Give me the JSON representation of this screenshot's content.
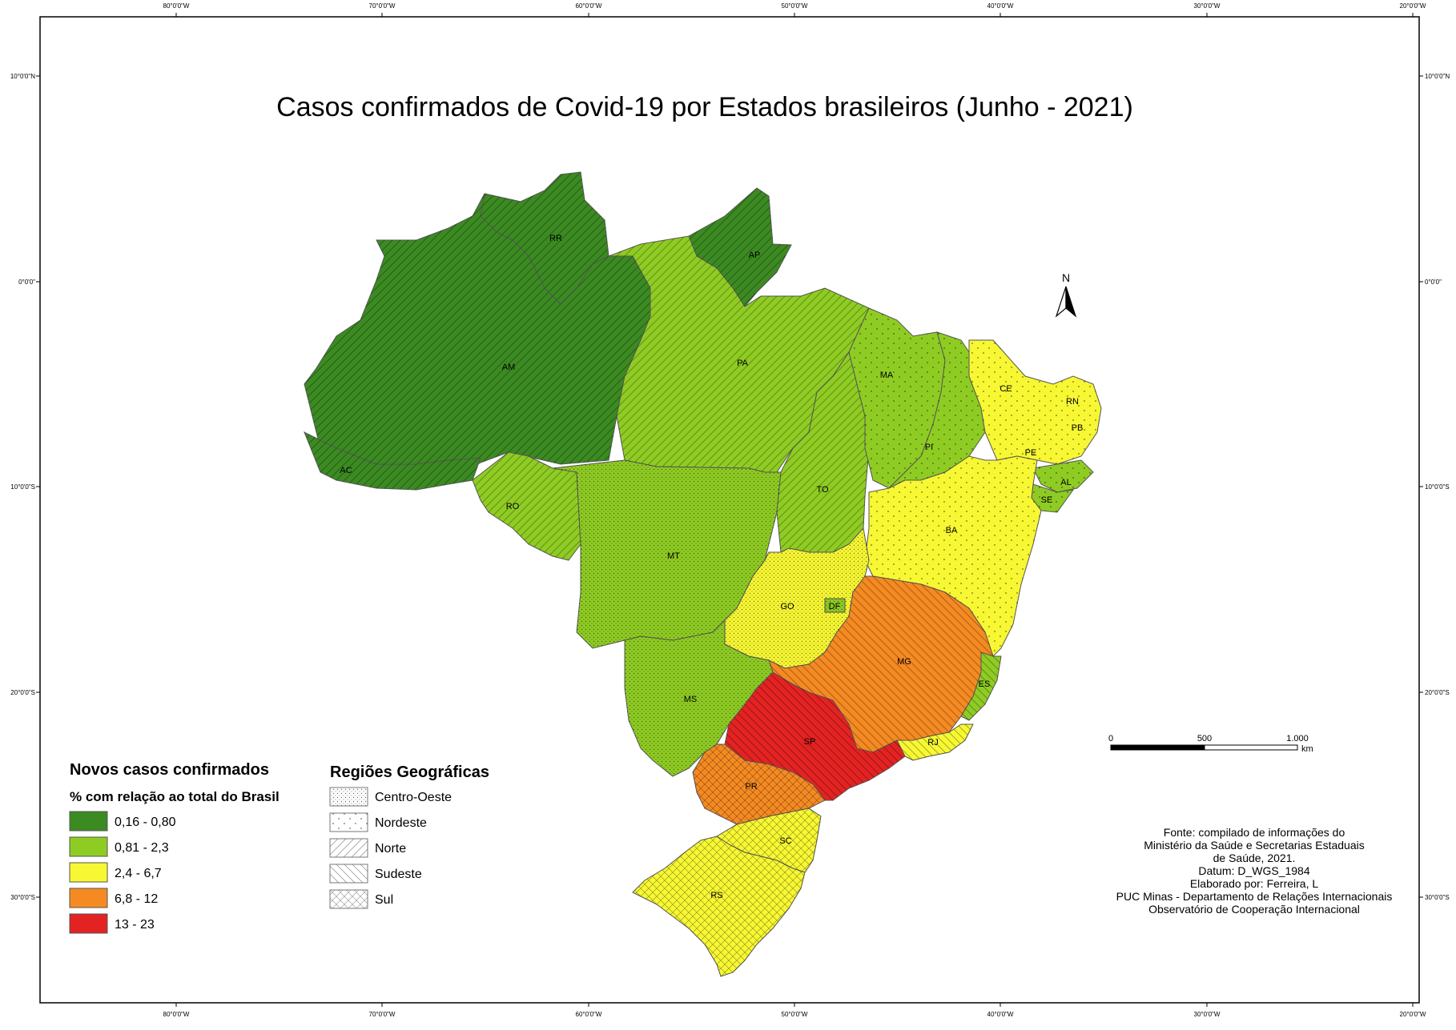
{
  "title": "Casos confirmados de Covid-19 por Estados brasileiros (Junho - 2021)",
  "colors": {
    "c1": "#3b8a22",
    "c2": "#8fcc23",
    "c3": "#f7f733",
    "c4": "#f58a22",
    "c5": "#e32222"
  },
  "ticks": {
    "longitude": [
      "80°0'0\"W",
      "70°0'0\"W",
      "60°0'0\"W",
      "50°0'0\"W",
      "40°0'0\"W",
      "30°0'0\"W",
      "20°0'0\"W"
    ],
    "latitude": [
      "10°0'0\"N",
      "0°0'0\"",
      "10°0'0\"S",
      "20°0'0\"S",
      "30°0'0\"S"
    ]
  },
  "states": {
    "RR": "RR",
    "AP": "AP",
    "AM": "AM",
    "PA": "PA",
    "AC": "AC",
    "RO": "RO",
    "MA": "MA",
    "PI": "PI",
    "CE": "CE",
    "RN": "RN",
    "PB": "PB",
    "PE": "PE",
    "AL": "AL",
    "SE": "SE",
    "BA": "BA",
    "TO": "TO",
    "MT": "MT",
    "GO": "GO",
    "DF": "DF",
    "MG": "MG",
    "ES": "ES",
    "MS": "MS",
    "SP": "SP",
    "RJ": "RJ",
    "PR": "PR",
    "SC": "SC",
    "RS": "RS"
  },
  "north": "N",
  "legend": {
    "title": "Novos casos confirmados",
    "subtitle": "% com relação ao total do Brasil",
    "classes": [
      {
        "label": "0,16 - 0,80",
        "color": "#3b8a22"
      },
      {
        "label": "0,81 - 2,3",
        "color": "#8fcc23"
      },
      {
        "label": "2,4 - 6,7",
        "color": "#f7f733"
      },
      {
        "label": "6,8 - 12",
        "color": "#f58a22"
      },
      {
        "label": "13 - 23",
        "color": "#e32222"
      }
    ]
  },
  "regions": {
    "title": "Regiões Geográficas",
    "items": [
      {
        "label": "Centro-Oeste",
        "pattern": "dots"
      },
      {
        "label": "Nordeste",
        "pattern": "sparse-dots"
      },
      {
        "label": "Norte",
        "pattern": "diag-up"
      },
      {
        "label": "Sudeste",
        "pattern": "diag-down"
      },
      {
        "label": "Sul",
        "pattern": "crosshatch"
      }
    ]
  },
  "scale": {
    "labels": [
      "0",
      "500",
      "1.000"
    ],
    "unit": "km"
  },
  "source": [
    "Fonte: compilado de informações do",
    "Ministério da Saúde e Secretarias Estaduais",
    "de Saúde, 2021.",
    "Datum: D_WGS_1984",
    "Elaborado por: Ferreira, L",
    "PUC Minas - Departamento de Relações Internacionais",
    "Observatório de Cooperação Internacional"
  ]
}
